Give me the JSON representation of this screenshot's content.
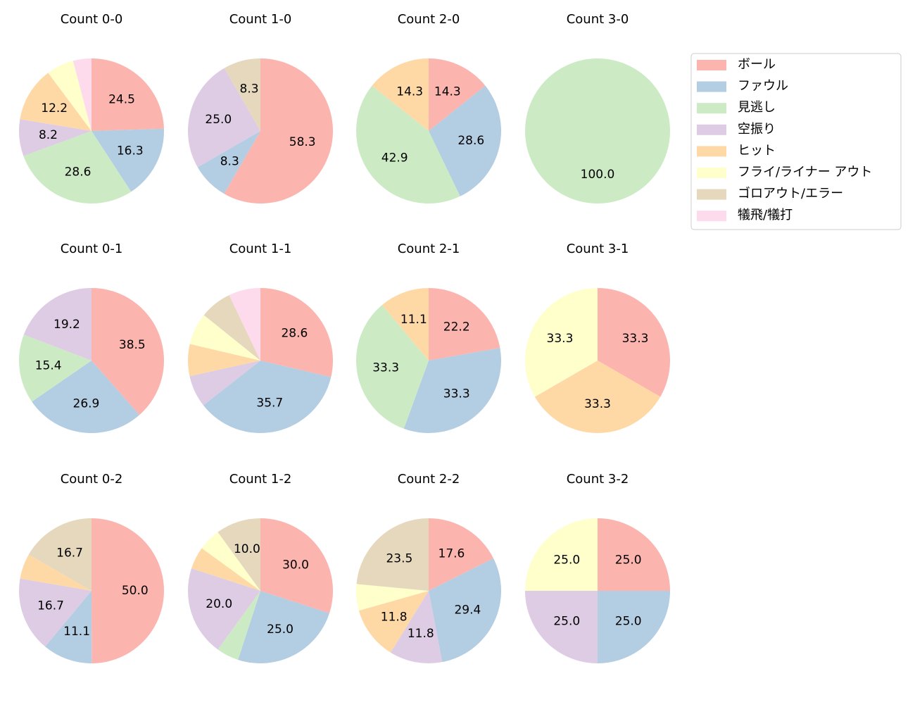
{
  "legend": {
    "categories": [
      "ボール",
      "ファウル",
      "見逃し",
      "空振り",
      "ヒット",
      "フライ/ライナー アウト",
      "ゴロアウト/エラー",
      "犠飛/犠打"
    ],
    "colors": [
      "#fbb4ae",
      "#b3cde3",
      "#ccebc5",
      "#decbe4",
      "#fed9a6",
      "#ffffcc",
      "#e5d8bd",
      "#fddaec"
    ]
  },
  "chart_data": [
    {
      "type": "pie",
      "title": "Count 0-0",
      "values": [
        24.5,
        16.3,
        28.6,
        8.2,
        12.2,
        6.1,
        0,
        4.1
      ],
      "value_labels": [
        "24.5",
        "16.3",
        "28.6",
        "8.2",
        "12.2",
        null,
        null,
        null
      ]
    },
    {
      "type": "pie",
      "title": "Count 1-0",
      "values": [
        58.3,
        8.3,
        0,
        25.0,
        0,
        0,
        8.3,
        0
      ],
      "value_labels": [
        "58.3",
        "8.3",
        null,
        "25.0",
        null,
        null,
        "8.3",
        null
      ]
    },
    {
      "type": "pie",
      "title": "Count 2-0",
      "values": [
        14.3,
        28.6,
        42.9,
        0,
        14.3,
        0,
        0,
        0
      ],
      "value_labels": [
        "14.3",
        "28.6",
        "42.9",
        null,
        "14.3",
        null,
        null,
        null
      ]
    },
    {
      "type": "pie",
      "title": "Count 3-0",
      "values": [
        0,
        0,
        100,
        0,
        0,
        0,
        0,
        0
      ],
      "value_labels": [
        null,
        null,
        "100.0",
        null,
        null,
        null,
        null,
        null
      ]
    },
    {
      "type": "pie",
      "title": "Count 0-1",
      "values": [
        38.5,
        26.9,
        15.4,
        19.2,
        0,
        0,
        0,
        0
      ],
      "value_labels": [
        "38.5",
        "26.9",
        "15.4",
        "19.2",
        null,
        null,
        null,
        null
      ]
    },
    {
      "type": "pie",
      "title": "Count 1-1",
      "values": [
        28.6,
        35.7,
        0,
        7.1,
        7.1,
        7.1,
        7.1,
        7.1
      ],
      "value_labels": [
        "28.6",
        "35.7",
        null,
        null,
        null,
        null,
        null,
        null
      ]
    },
    {
      "type": "pie",
      "title": "Count 2-1",
      "values": [
        22.2,
        33.3,
        33.3,
        0,
        11.1,
        0,
        0,
        0
      ],
      "value_labels": [
        "22.2",
        "33.3",
        "33.3",
        null,
        "11.1",
        null,
        null,
        null
      ]
    },
    {
      "type": "pie",
      "title": "Count 3-1",
      "values": [
        33.3,
        0,
        0,
        0,
        33.3,
        33.3,
        0,
        0
      ],
      "value_labels": [
        "33.3",
        null,
        null,
        null,
        "33.3",
        "33.3",
        null,
        null
      ]
    },
    {
      "type": "pie",
      "title": "Count 0-2",
      "values": [
        50.0,
        11.1,
        0,
        16.7,
        5.6,
        0,
        16.7,
        0
      ],
      "value_labels": [
        "50.0",
        "11.1",
        null,
        "16.7",
        null,
        null,
        "16.7",
        null
      ]
    },
    {
      "type": "pie",
      "title": "Count 1-2",
      "values": [
        30.0,
        25.0,
        5.0,
        20.0,
        5.0,
        5.0,
        10.0,
        0
      ],
      "value_labels": [
        "30.0",
        "25.0",
        null,
        "20.0",
        null,
        null,
        "10.0",
        null
      ]
    },
    {
      "type": "pie",
      "title": "Count 2-2",
      "values": [
        17.6,
        29.4,
        0,
        11.8,
        11.8,
        5.9,
        23.5,
        0
      ],
      "value_labels": [
        "17.6",
        "29.4",
        null,
        "11.8",
        "11.8",
        null,
        "23.5",
        null
      ]
    },
    {
      "type": "pie",
      "title": "Count 3-2",
      "values": [
        25.0,
        25.0,
        0,
        25.0,
        0,
        25.0,
        0,
        0
      ],
      "value_labels": [
        "25.0",
        "25.0",
        null,
        "25.0",
        null,
        "25.0",
        null,
        null
      ]
    }
  ]
}
